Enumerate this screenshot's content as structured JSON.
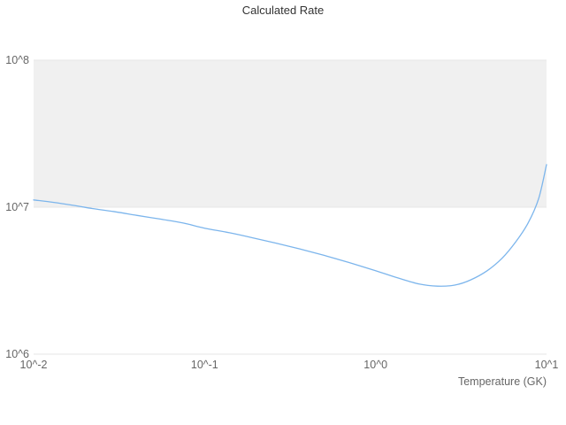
{
  "chart_data": {
    "type": "line",
    "title": "Calculated Rate",
    "xlabel": "Temperature (GK)",
    "ylabel": "",
    "x_scale": "log",
    "y_scale": "log",
    "xlim": [
      0.01,
      10
    ],
    "ylim": [
      1000000,
      100000000
    ],
    "grid": "banded",
    "legend": "none",
    "x_ticks": [
      {
        "value": 0.01,
        "label": "10^-2"
      },
      {
        "value": 0.1,
        "label": "10^-1"
      },
      {
        "value": 1,
        "label": "10^0"
      },
      {
        "value": 10,
        "label": "10^1"
      }
    ],
    "y_ticks": [
      {
        "value": 1000000,
        "label": "10^6"
      },
      {
        "value": 10000000,
        "label": "10^7"
      },
      {
        "value": 100000000,
        "label": "10^8"
      }
    ],
    "colors": {
      "line": "#7cb5ec",
      "band": "#f0f0f0",
      "gridline": "#e6e6e6",
      "title_text": "#333333",
      "axis_text": "#666666"
    },
    "series": [
      {
        "name": "Calculated Rate",
        "x": [
          0.01,
          0.013,
          0.017,
          0.022,
          0.03,
          0.04,
          0.055,
          0.075,
          0.1,
          0.14,
          0.19,
          0.26,
          0.36,
          0.5,
          0.7,
          1.0,
          1.35,
          1.8,
          2.3,
          2.9,
          3.6,
          4.5,
          5.5,
          6.6,
          7.8,
          9.0,
          10.0
        ],
        "y": [
          11200000,
          10800000,
          10300000,
          9800000,
          9300000,
          8800000,
          8300000,
          7800000,
          7200000,
          6700000,
          6200000,
          5700000,
          5200000,
          4700000,
          4200000,
          3700000,
          3300000,
          3000000,
          2900000,
          2950000,
          3200000,
          3700000,
          4500000,
          5800000,
          7800000,
          11500000,
          19500000
        ]
      }
    ]
  }
}
